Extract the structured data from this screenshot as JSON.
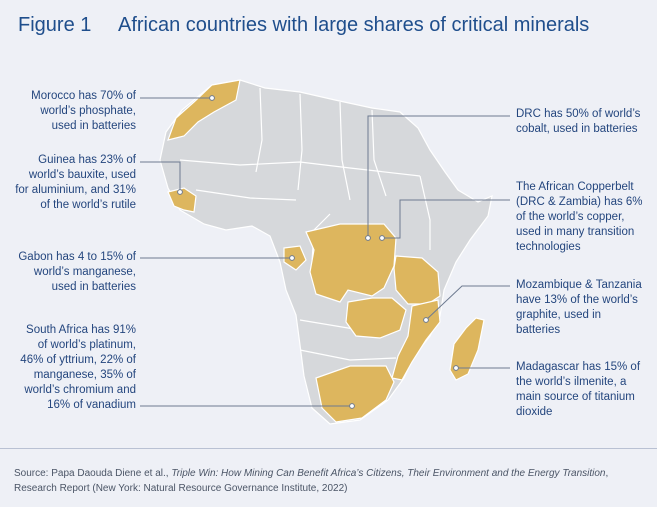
{
  "header": {
    "figure_number": "Figure 1",
    "title": "African countries with large shares of critical minerals"
  },
  "colors": {
    "highlight": "#ddb65e",
    "land": "#d6d8db",
    "border": "#ffffff",
    "text": "#24467e",
    "leader": "#6d7a90"
  },
  "annotations": {
    "morocco": "Morocco has 70% of world’s phosphate, used in batteries",
    "guinea": "Guinea has 23% of world’s bauxite, used for aluminium, and 31% of the world’s rutile",
    "gabon": "Gabon has 4 to 15% of world’s manganese, used in batteries",
    "south_africa": "South Africa has 91% of world’s platinum, 46% of yttrium, 22% of manganese, 35% of world’s chromium and 16% of vanadium",
    "drc": "DRC has 50% of world’s cobalt, used in batteries",
    "copperbelt": "The African Copperbelt (DRC & Zambia) has 6% of the world’s copper, used in many transition technologies",
    "mozambique_tanzania": "Mozambique & Tanzania have 13% of the world’s graphite, used in batteries",
    "madagascar": "Madagascar has 15% of the world’s ilmenite, a main source of titanium dioxide"
  },
  "source": {
    "prefix": "Source: Papa Daouda Diene et al., ",
    "title": "Triple Win: How Mining Can Benefit Africa’s Citizens, Their Environment and the Energy Transition",
    "suffix": ", Research Report (New York: Natural Resource Governance Institute, 2022)"
  }
}
